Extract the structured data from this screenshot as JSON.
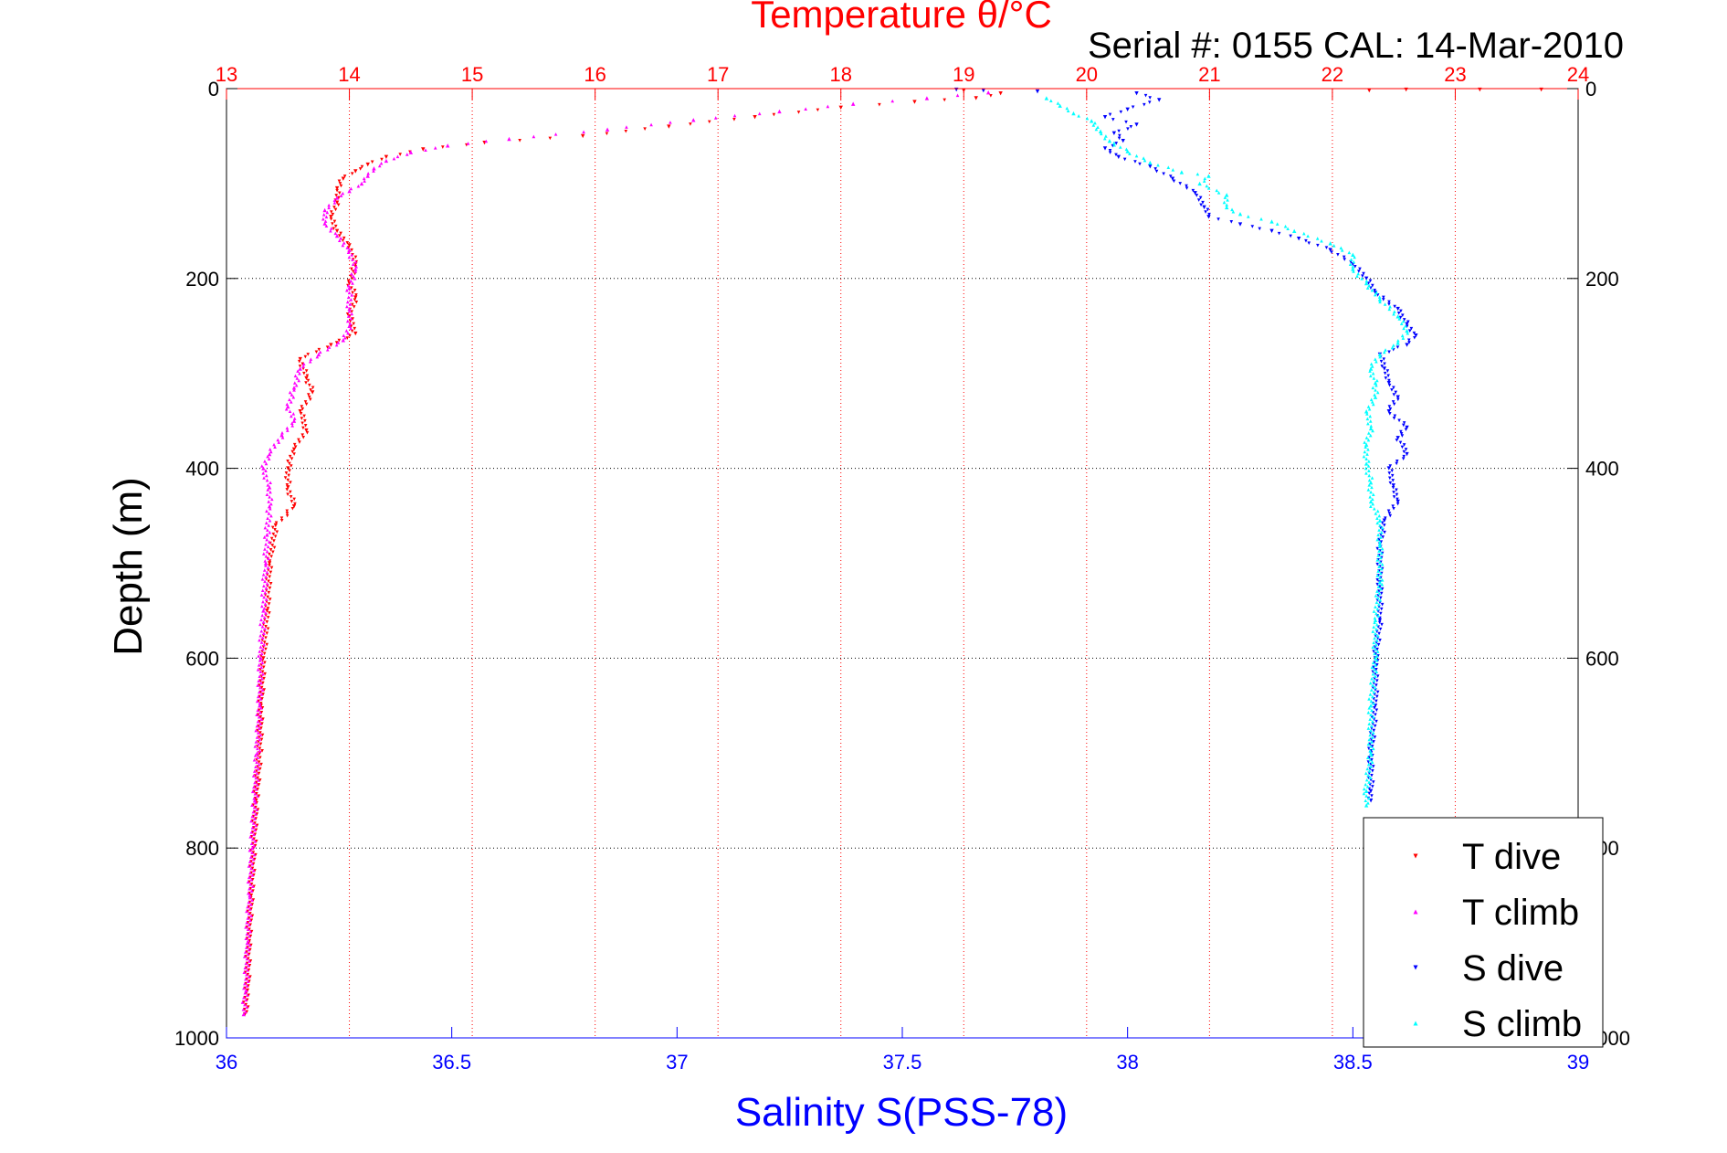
{
  "figure": {
    "title": "Temperature θ/°C",
    "subtitle": "Serial #: 0155  CAL: 14-Mar-2010",
    "top_axis_label_color": "#ff0000",
    "bottom_axis_label_color": "#0000ff"
  },
  "chart_data": {
    "type": "scatter",
    "title": "Temperature θ/°C",
    "subtitle": "Serial #: 0155  CAL: 14-Mar-2010",
    "ylabel": "Depth (m)",
    "ylim": [
      0,
      1000
    ],
    "y_reversed": true,
    "yticks": [
      0,
      200,
      400,
      600,
      800,
      1000
    ],
    "x_top": {
      "label": "Temperature θ/°C",
      "lim": [
        13,
        24
      ],
      "ticks": [
        13,
        14,
        15,
        16,
        17,
        18,
        19,
        20,
        21,
        22,
        23,
        24
      ],
      "color": "#ff0000",
      "grid": true
    },
    "x_bottom": {
      "label": "Salinity S(PSS-78)",
      "lim": [
        36,
        39
      ],
      "ticks": [
        36,
        36.5,
        37,
        37.5,
        38,
        38.5,
        39
      ],
      "color": "#0000ff"
    },
    "y_grid": true,
    "legend_position": "bottom-right",
    "series": [
      {
        "name": "T dive",
        "axis": "top",
        "marker": "triangle-down",
        "color": "#ff0000",
        "points": [
          [
            19.0,
            2
          ],
          [
            19.3,
            5
          ],
          [
            19.1,
            10
          ],
          [
            18.6,
            14
          ],
          [
            18.0,
            20
          ],
          [
            17.3,
            30
          ],
          [
            16.6,
            40
          ],
          [
            15.9,
            50
          ],
          [
            15.1,
            57
          ],
          [
            14.6,
            64
          ],
          [
            14.3,
            72
          ],
          [
            14.15,
            80
          ],
          [
            14.05,
            87
          ],
          [
            13.95,
            95
          ],
          [
            13.9,
            105
          ],
          [
            13.9,
            120
          ],
          [
            13.85,
            135
          ],
          [
            13.9,
            150
          ],
          [
            14.0,
            165
          ],
          [
            14.05,
            185
          ],
          [
            14.0,
            205
          ],
          [
            14.05,
            220
          ],
          [
            14.0,
            240
          ],
          [
            14.05,
            258
          ],
          [
            13.85,
            270
          ],
          [
            13.6,
            285
          ],
          [
            13.65,
            305
          ],
          [
            13.7,
            320
          ],
          [
            13.6,
            340
          ],
          [
            13.65,
            360
          ],
          [
            13.55,
            380
          ],
          [
            13.5,
            400
          ],
          [
            13.5,
            420
          ],
          [
            13.55,
            440
          ],
          [
            13.4,
            460
          ],
          [
            13.35,
            500
          ],
          [
            13.33,
            550
          ],
          [
            13.3,
            600
          ],
          [
            13.28,
            650
          ],
          [
            13.27,
            700
          ],
          [
            13.24,
            750
          ],
          [
            13.22,
            800
          ],
          [
            13.2,
            850
          ],
          [
            13.18,
            900
          ],
          [
            13.17,
            950
          ],
          [
            13.15,
            975
          ],
          [
            22.3,
            2
          ],
          [
            22.6,
            1
          ],
          [
            23.2,
            1
          ],
          [
            23.7,
            1
          ]
        ]
      },
      {
        "name": "T climb",
        "axis": "top",
        "marker": "triangle-up",
        "color": "#ff00ff",
        "points": [
          [
            19.2,
            4
          ],
          [
            18.7,
            10
          ],
          [
            18.1,
            16
          ],
          [
            17.5,
            24
          ],
          [
            16.8,
            33
          ],
          [
            16.1,
            43
          ],
          [
            15.3,
            53
          ],
          [
            14.8,
            60
          ],
          [
            14.5,
            67
          ],
          [
            14.3,
            76
          ],
          [
            14.2,
            84
          ],
          [
            14.15,
            92
          ],
          [
            14.1,
            100
          ],
          [
            14.0,
            108
          ],
          [
            13.9,
            115
          ],
          [
            13.8,
            128
          ],
          [
            13.8,
            142
          ],
          [
            13.9,
            155
          ],
          [
            14.0,
            170
          ],
          [
            14.05,
            190
          ],
          [
            14.0,
            210
          ],
          [
            14.0,
            232
          ],
          [
            14.0,
            250
          ],
          [
            13.95,
            265
          ],
          [
            13.75,
            280
          ],
          [
            13.6,
            295
          ],
          [
            13.55,
            315
          ],
          [
            13.5,
            335
          ],
          [
            13.55,
            350
          ],
          [
            13.45,
            365
          ],
          [
            13.35,
            385
          ],
          [
            13.3,
            400
          ],
          [
            13.35,
            420
          ],
          [
            13.35,
            440
          ],
          [
            13.33,
            470
          ],
          [
            13.32,
            500
          ],
          [
            13.3,
            550
          ],
          [
            13.28,
            600
          ],
          [
            13.27,
            650
          ],
          [
            13.25,
            700
          ],
          [
            13.23,
            750
          ],
          [
            13.21,
            800
          ],
          [
            13.19,
            850
          ],
          [
            13.17,
            900
          ],
          [
            13.16,
            950
          ],
          [
            13.14,
            975
          ]
        ]
      },
      {
        "name": "S dive",
        "axis": "bottom",
        "marker": "triangle-down",
        "color": "#0000ff",
        "points": [
          [
            37.62,
            1
          ],
          [
            37.68,
            2
          ],
          [
            37.8,
            3
          ],
          [
            38.02,
            5
          ],
          [
            38.07,
            12
          ],
          [
            38.0,
            22
          ],
          [
            37.95,
            30
          ],
          [
            38.02,
            38
          ],
          [
            37.97,
            47
          ],
          [
            37.99,
            55
          ],
          [
            37.95,
            63
          ],
          [
            37.98,
            72
          ],
          [
            38.05,
            82
          ],
          [
            38.1,
            95
          ],
          [
            38.15,
            110
          ],
          [
            38.17,
            125
          ],
          [
            38.18,
            135
          ],
          [
            38.25,
            143
          ],
          [
            38.32,
            150
          ],
          [
            38.38,
            158
          ],
          [
            38.45,
            170
          ],
          [
            38.5,
            185
          ],
          [
            38.53,
            200
          ],
          [
            38.55,
            215
          ],
          [
            38.6,
            232
          ],
          [
            38.62,
            248
          ],
          [
            38.64,
            260
          ],
          [
            38.62,
            270
          ],
          [
            38.56,
            280
          ],
          [
            38.57,
            295
          ],
          [
            38.58,
            310
          ],
          [
            38.6,
            325
          ],
          [
            38.58,
            340
          ],
          [
            38.62,
            357
          ],
          [
            38.6,
            368
          ],
          [
            38.62,
            385
          ],
          [
            38.58,
            400
          ],
          [
            38.59,
            418
          ],
          [
            38.6,
            435
          ],
          [
            38.57,
            455
          ],
          [
            38.56,
            480
          ],
          [
            38.56,
            520
          ],
          [
            38.56,
            560
          ],
          [
            38.55,
            600
          ],
          [
            38.55,
            650
          ],
          [
            38.54,
            700
          ],
          [
            38.54,
            740
          ],
          [
            38.54,
            750
          ]
        ]
      },
      {
        "name": "S climb",
        "axis": "bottom",
        "marker": "triangle-up",
        "color": "#00ffff",
        "points": [
          [
            37.82,
            10
          ],
          [
            37.85,
            18
          ],
          [
            37.88,
            26
          ],
          [
            37.92,
            34
          ],
          [
            37.94,
            45
          ],
          [
            37.96,
            55
          ],
          [
            38.0,
            66
          ],
          [
            38.05,
            78
          ],
          [
            38.12,
            88
          ],
          [
            38.18,
            92
          ],
          [
            38.16,
            100
          ],
          [
            38.22,
            112
          ],
          [
            38.22,
            125
          ],
          [
            38.25,
            132
          ],
          [
            38.32,
            140
          ],
          [
            38.37,
            150
          ],
          [
            38.45,
            163
          ],
          [
            38.5,
            175
          ],
          [
            38.5,
            190
          ],
          [
            38.53,
            205
          ],
          [
            38.56,
            222
          ],
          [
            38.6,
            240
          ],
          [
            38.62,
            255
          ],
          [
            38.6,
            268
          ],
          [
            38.56,
            280
          ],
          [
            38.54,
            295
          ],
          [
            38.55,
            310
          ],
          [
            38.55,
            325
          ],
          [
            38.53,
            340
          ],
          [
            38.54,
            358
          ],
          [
            38.53,
            375
          ],
          [
            38.53,
            395
          ],
          [
            38.54,
            415
          ],
          [
            38.54,
            435
          ],
          [
            38.56,
            455
          ],
          [
            38.56,
            480
          ],
          [
            38.56,
            520
          ],
          [
            38.55,
            560
          ],
          [
            38.55,
            600
          ],
          [
            38.54,
            650
          ],
          [
            38.54,
            700
          ],
          [
            38.53,
            740
          ],
          [
            38.53,
            755
          ]
        ]
      }
    ]
  }
}
